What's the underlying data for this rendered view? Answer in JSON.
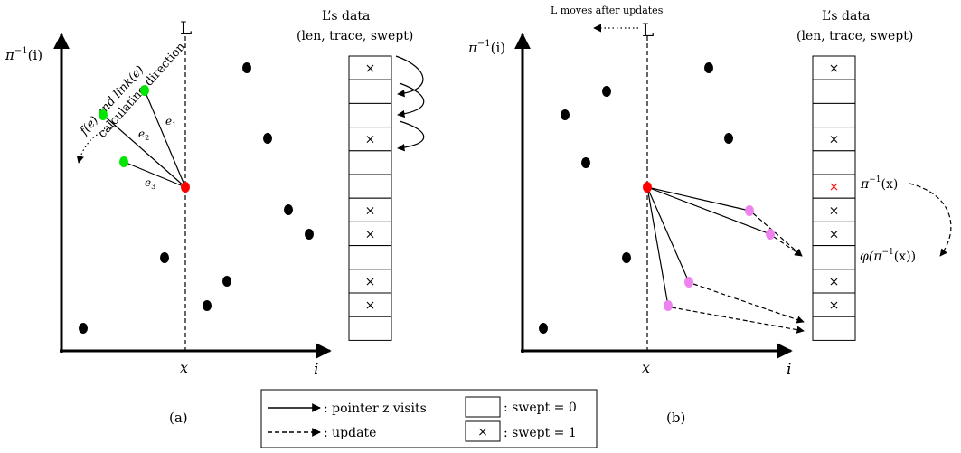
{
  "panel_a": {
    "caption": "(a)",
    "axis_y_label": "π",
    "axis_y_sup": "−1",
    "axis_y_arg": "(i)",
    "axis_x_label": "i",
    "sweep_line_label": "L",
    "sweep_x_label": "x",
    "data_title_line1": "L’s data",
    "data_title_line2": "(len, trace, swept)",
    "calc_label_line1": "f(e) and link(e)",
    "calc_label_line2": "calculating direction",
    "edge_labels": [
      "e",
      "e",
      "e"
    ],
    "edge_subscripts": [
      "1",
      "2",
      "3"
    ],
    "cells": [
      "×",
      "",
      "",
      "×",
      "",
      "",
      "×",
      "×",
      "",
      "×",
      "×",
      ""
    ]
  },
  "panel_b": {
    "caption": "(b)",
    "axis_y_label": "π",
    "axis_y_sup": "−1",
    "axis_y_arg": "(i)",
    "axis_x_label": "i",
    "sweep_line_label": "L",
    "sweep_x_label": "x",
    "move_label": "L moves after updates",
    "data_title_line1": "L’s data",
    "data_title_line2": "(len, trace, swept)",
    "pi_x_label": "π",
    "pi_x_sup": "−1",
    "pi_x_arg": "(x)",
    "phi_label": "φ(π",
    "phi_sup": "−1",
    "phi_arg": "(x))",
    "cells": [
      "×",
      "",
      "",
      "×",
      "",
      "×",
      "×",
      "×",
      "",
      "×",
      "×",
      ""
    ]
  },
  "legend": {
    "pointer_label": ": pointer z visits",
    "update_label": ": update",
    "swept0_label": ": swept = 0",
    "swept1_label": ": swept = 1",
    "swept1_mark": "×"
  },
  "colors": {
    "point": "#000000",
    "red_point": "#ff0000",
    "green_point": "#00e600",
    "pink_point": "#ee82ee",
    "red_cross": "#ff0000"
  }
}
